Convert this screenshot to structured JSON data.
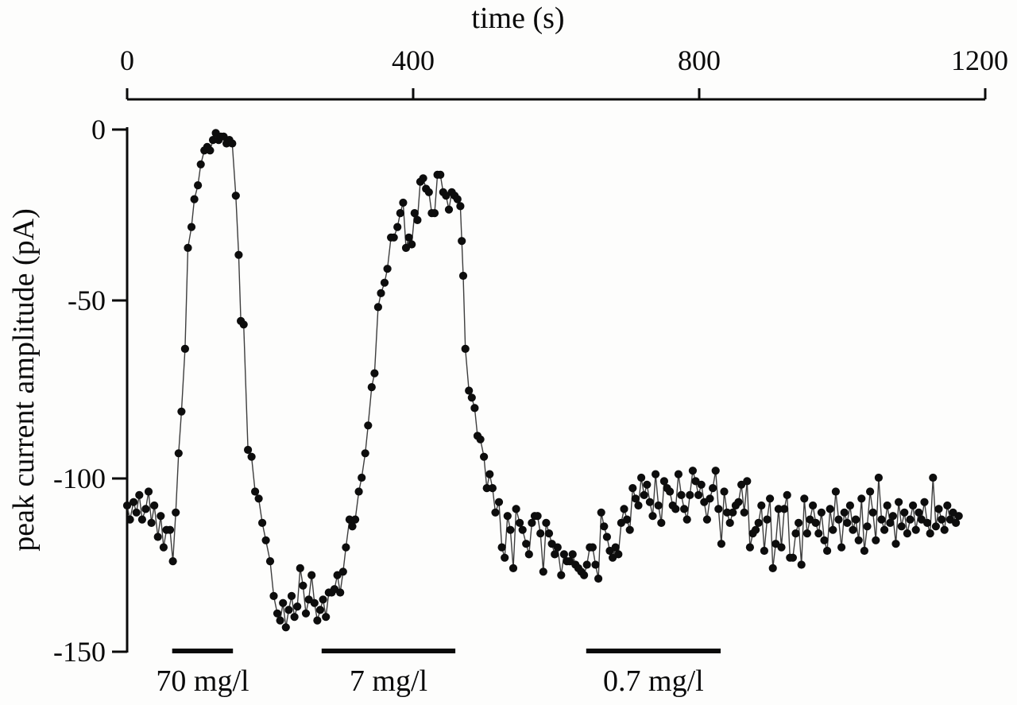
{
  "figure": {
    "background": "#fdfdfc",
    "ink_color": "#0a0a0a",
    "trace_line_color": "#3d3d3d",
    "marker_color": "#0d0d0d"
  },
  "chart_data": {
    "type": "scatter",
    "title": "",
    "xlabel": "time (s)",
    "ylabel": "peak current amplitude (pA)",
    "xlim": [
      0,
      1200
    ],
    "ylim": [
      -150,
      0
    ],
    "x_axis_position": "top",
    "grid": false,
    "legend": "none",
    "marker": "filled-circle",
    "line_between_points": true,
    "x_tick_values": [
      0,
      400,
      800,
      1200
    ],
    "x_tick_labels": [
      "0",
      "400",
      "800",
      "1200"
    ],
    "y_tick_values": [
      0,
      -50,
      -100,
      -150
    ],
    "y_tick_labels": [
      "0",
      "-50",
      "-100",
      "-150"
    ],
    "annotations": [
      {
        "label": "70 mg/l",
        "t_start": 63,
        "t_end": 148,
        "y": -150
      },
      {
        "label": "7 mg/l",
        "t_start": 272,
        "t_end": 459,
        "y": -150
      },
      {
        "label": "0.7 mg/l",
        "t_start": 642,
        "t_end": 830,
        "y": -150
      }
    ],
    "series": [
      {
        "name": "peak current amplitude",
        "points": [
          [
            0,
            -108
          ],
          [
            4,
            -112
          ],
          [
            9,
            -107
          ],
          [
            13,
            -110
          ],
          [
            17,
            -105
          ],
          [
            21,
            -112
          ],
          [
            26,
            -109
          ],
          [
            30,
            -104
          ],
          [
            34,
            -113
          ],
          [
            38,
            -108
          ],
          [
            43,
            -117
          ],
          [
            47,
            -111
          ],
          [
            51,
            -120
          ],
          [
            55,
            -115
          ],
          [
            60,
            -115
          ],
          [
            64,
            -124
          ],
          [
            68,
            -110
          ],
          [
            72,
            -93
          ],
          [
            76,
            -81
          ],
          [
            81,
            -63
          ],
          [
            85,
            -34
          ],
          [
            90,
            -28
          ],
          [
            94,
            -20
          ],
          [
            99,
            -16
          ],
          [
            103,
            -10
          ],
          [
            108,
            -6
          ],
          [
            112,
            -5
          ],
          [
            116,
            -6
          ],
          [
            120,
            -3
          ],
          [
            124,
            -1
          ],
          [
            128,
            -3
          ],
          [
            131,
            -2
          ],
          [
            135,
            -2
          ],
          [
            139,
            -4
          ],
          [
            143,
            -3
          ],
          [
            147,
            -4
          ],
          [
            152,
            -19
          ],
          [
            156,
            -36
          ],
          [
            159,
            -55
          ],
          [
            163,
            -56
          ],
          [
            169,
            -92
          ],
          [
            174,
            -94
          ],
          [
            179,
            -104
          ],
          [
            184,
            -106
          ],
          [
            189,
            -113
          ],
          [
            194,
            -118
          ],
          [
            200,
            -124
          ],
          [
            205,
            -134
          ],
          [
            210,
            -139
          ],
          [
            214,
            -141
          ],
          [
            218,
            -136
          ],
          [
            222,
            -143
          ],
          [
            226,
            -138
          ],
          [
            230,
            -134
          ],
          [
            234,
            -140
          ],
          [
            238,
            -137
          ],
          [
            242,
            -126
          ],
          [
            246,
            -131
          ],
          [
            250,
            -139
          ],
          [
            254,
            -135
          ],
          [
            258,
            -128
          ],
          [
            262,
            -136
          ],
          [
            266,
            -141
          ],
          [
            270,
            -138
          ],
          [
            274,
            -135
          ],
          [
            278,
            -140
          ],
          [
            282,
            -133
          ],
          [
            286,
            -133
          ],
          [
            290,
            -132
          ],
          [
            294,
            -128
          ],
          [
            298,
            -133
          ],
          [
            302,
            -127
          ],
          [
            306,
            -120
          ],
          [
            311,
            -112
          ],
          [
            315,
            -114
          ],
          [
            319,
            -112
          ],
          [
            324,
            -104
          ],
          [
            328,
            -100
          ],
          [
            333,
            -93
          ],
          [
            337,
            -85
          ],
          [
            342,
            -74
          ],
          [
            346,
            -70
          ],
          [
            351,
            -51
          ],
          [
            355,
            -47
          ],
          [
            360,
            -44
          ],
          [
            364,
            -40
          ],
          [
            369,
            -31
          ],
          [
            373,
            -31
          ],
          [
            378,
            -28
          ],
          [
            382,
            -24
          ],
          [
            386,
            -21
          ],
          [
            390,
            -34
          ],
          [
            394,
            -31
          ],
          [
            398,
            -33
          ],
          [
            402,
            -24
          ],
          [
            406,
            -26
          ],
          [
            410,
            -15
          ],
          [
            414,
            -14
          ],
          [
            418,
            -17
          ],
          [
            422,
            -18
          ],
          [
            426,
            -24
          ],
          [
            430,
            -24
          ],
          [
            434,
            -13
          ],
          [
            438,
            -13
          ],
          [
            442,
            -18
          ],
          [
            446,
            -19
          ],
          [
            450,
            -23
          ],
          [
            454,
            -18
          ],
          [
            458,
            -19
          ],
          [
            462,
            -20
          ],
          [
            466,
            -22
          ],
          [
            468,
            -32
          ],
          [
            470,
            -42
          ],
          [
            473,
            -63
          ],
          [
            478,
            -75
          ],
          [
            482,
            -77
          ],
          [
            486,
            -80
          ],
          [
            490,
            -88
          ],
          [
            494,
            -89
          ],
          [
            499,
            -94
          ],
          [
            503,
            -103
          ],
          [
            507,
            -99
          ],
          [
            511,
            -103
          ],
          [
            515,
            -110
          ],
          [
            520,
            -107
          ],
          [
            524,
            -120
          ],
          [
            528,
            -123
          ],
          [
            532,
            -111
          ],
          [
            536,
            -115
          ],
          [
            540,
            -126
          ],
          [
            544,
            -109
          ],
          [
            549,
            -113
          ],
          [
            553,
            -115
          ],
          [
            558,
            -119
          ],
          [
            562,
            -122
          ],
          [
            566,
            -113
          ],
          [
            570,
            -111
          ],
          [
            574,
            -111
          ],
          [
            578,
            -116
          ],
          [
            582,
            -127
          ],
          [
            586,
            -113
          ],
          [
            590,
            -116
          ],
          [
            594,
            -119
          ],
          [
            598,
            -122
          ],
          [
            602,
            -120
          ],
          [
            607,
            -128
          ],
          [
            611,
            -122
          ],
          [
            615,
            -124
          ],
          [
            619,
            -124
          ],
          [
            623,
            -122
          ],
          [
            627,
            -125
          ],
          [
            631,
            -126
          ],
          [
            635,
            -127
          ],
          [
            639,
            -128
          ],
          [
            643,
            -125
          ],
          [
            647,
            -120
          ],
          [
            651,
            -120
          ],
          [
            655,
            -125
          ],
          [
            659,
            -129
          ],
          [
            663,
            -110
          ],
          [
            667,
            -114
          ],
          [
            671,
            -117
          ],
          [
            675,
            -121
          ],
          [
            679,
            -123
          ],
          [
            683,
            -120
          ],
          [
            687,
            -122
          ],
          [
            691,
            -113
          ],
          [
            695,
            -109
          ],
          [
            699,
            -112
          ],
          [
            703,
            -115
          ],
          [
            707,
            -103
          ],
          [
            711,
            -106
          ],
          [
            715,
            -108
          ],
          [
            719,
            -100
          ],
          [
            723,
            -105
          ],
          [
            727,
            -102
          ],
          [
            731,
            -107
          ],
          [
            735,
            -111
          ],
          [
            739,
            -99
          ],
          [
            743,
            -108
          ],
          [
            747,
            -113
          ],
          [
            751,
            -101
          ],
          [
            755,
            -103
          ],
          [
            759,
            -104
          ],
          [
            763,
            -108
          ],
          [
            767,
            -109
          ],
          [
            771,
            -99
          ],
          [
            775,
            -105
          ],
          [
            779,
            -109
          ],
          [
            783,
            -112
          ],
          [
            787,
            -105
          ],
          [
            791,
            -98
          ],
          [
            795,
            -101
          ],
          [
            799,
            -105
          ],
          [
            803,
            -102
          ],
          [
            807,
            -107
          ],
          [
            811,
            -112
          ],
          [
            815,
            -106
          ],
          [
            819,
            -103
          ],
          [
            823,
            -98
          ],
          [
            827,
            -109
          ],
          [
            831,
            -119
          ],
          [
            835,
            -104
          ],
          [
            839,
            -110
          ],
          [
            843,
            -113
          ],
          [
            847,
            -110
          ],
          [
            851,
            -108
          ],
          [
            855,
            -107
          ],
          [
            859,
            -102
          ],
          [
            863,
            -110
          ],
          [
            867,
            -101
          ],
          [
            871,
            -120
          ],
          [
            875,
            -116
          ],
          [
            879,
            -115
          ],
          [
            883,
            -113
          ],
          [
            887,
            -108
          ],
          [
            891,
            -121
          ],
          [
            895,
            -112
          ],
          [
            899,
            -106
          ],
          [
            903,
            -126
          ],
          [
            907,
            -119
          ],
          [
            911,
            -109
          ],
          [
            915,
            -120
          ],
          [
            919,
            -109
          ],
          [
            923,
            -105
          ],
          [
            927,
            -123
          ],
          [
            931,
            -123
          ],
          [
            935,
            -116
          ],
          [
            939,
            -113
          ],
          [
            943,
            -125
          ],
          [
            947,
            -106
          ],
          [
            951,
            -116
          ],
          [
            955,
            -112
          ],
          [
            959,
            -108
          ],
          [
            963,
            -113
          ],
          [
            967,
            -116
          ],
          [
            971,
            -110
          ],
          [
            975,
            -118
          ],
          [
            979,
            -121
          ],
          [
            983,
            -109
          ],
          [
            987,
            -115
          ],
          [
            991,
            -104
          ],
          [
            995,
            -112
          ],
          [
            999,
            -120
          ],
          [
            1003,
            -110
          ],
          [
            1007,
            -113
          ],
          [
            1011,
            -108
          ],
          [
            1015,
            -115
          ],
          [
            1019,
            -112
          ],
          [
            1023,
            -118
          ],
          [
            1027,
            -106
          ],
          [
            1031,
            -121
          ],
          [
            1035,
            -114
          ],
          [
            1039,
            -104
          ],
          [
            1043,
            -110
          ],
          [
            1047,
            -118
          ],
          [
            1051,
            -100
          ],
          [
            1055,
            -112
          ],
          [
            1059,
            -115
          ],
          [
            1063,
            -108
          ],
          [
            1067,
            -113
          ],
          [
            1071,
            -111
          ],
          [
            1075,
            -119
          ],
          [
            1079,
            -107
          ],
          [
            1083,
            -114
          ],
          [
            1087,
            -110
          ],
          [
            1091,
            -116
          ],
          [
            1095,
            -112
          ],
          [
            1099,
            -108
          ],
          [
            1103,
            -115
          ],
          [
            1107,
            -110
          ],
          [
            1111,
            -112
          ],
          [
            1115,
            -107
          ],
          [
            1119,
            -113
          ],
          [
            1123,
            -116
          ],
          [
            1127,
            -100
          ],
          [
            1131,
            -114
          ],
          [
            1135,
            -109
          ],
          [
            1139,
            -112
          ],
          [
            1143,
            -115
          ],
          [
            1147,
            -108
          ],
          [
            1151,
            -112
          ],
          [
            1155,
            -110
          ],
          [
            1159,
            -113
          ],
          [
            1163,
            -111
          ]
        ]
      }
    ]
  }
}
